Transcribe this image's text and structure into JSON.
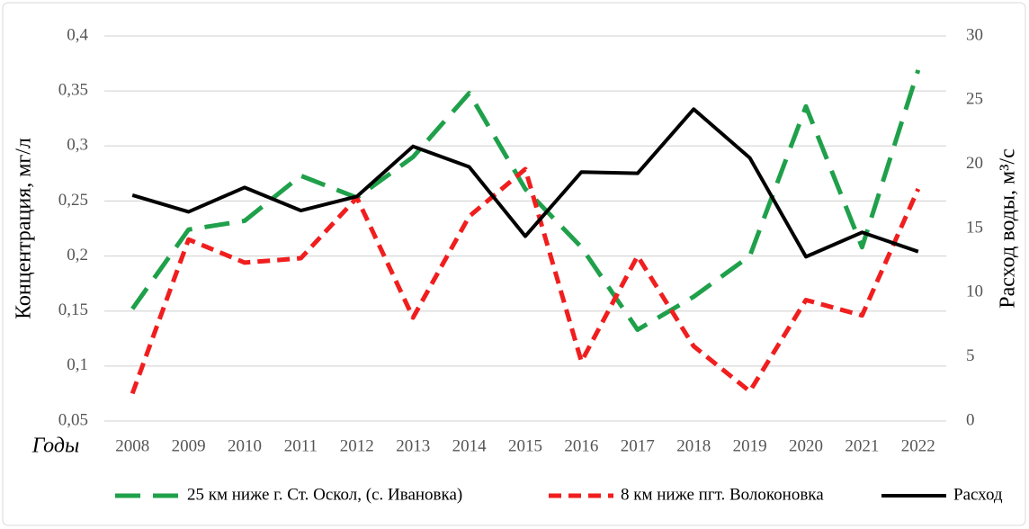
{
  "chart_data": {
    "type": "line",
    "x_label": "Годы",
    "y_label": "Концентрация, мг/л",
    "y2_label": "Расход воды, м³/с",
    "categories": [
      "2008",
      "2009",
      "2010",
      "2011",
      "2012",
      "2013",
      "2014",
      "2015",
      "2016",
      "2017",
      "2018",
      "2019",
      "2020",
      "2021",
      "2022"
    ],
    "series": [
      {
        "name": "25 км ниже г. Ст. Оскол, (с. Ивановка)",
        "color": "#1fa04a",
        "line_style": "long-dash",
        "values": [
          0.152,
          0.224,
          0.232,
          0.273,
          0.253,
          0.29,
          0.348,
          0.261,
          0.208,
          0.133,
          0.163,
          0.2,
          0.336,
          0.208,
          0.369
        ]
      },
      {
        "name": "8 км ниже пгт. Волоконовка",
        "color": "#f01e1e",
        "line_style": "dash",
        "values": [
          0.075,
          0.215,
          0.194,
          0.198,
          0.253,
          0.144,
          0.236,
          0.279,
          0.104,
          0.2,
          0.118,
          0.077,
          0.16,
          0.146,
          0.261
        ]
      },
      {
        "name": "Расход",
        "color": "#000000",
        "line_style": "solid",
        "axis": "y2",
        "values": [
          17.6,
          16.3,
          18.2,
          16.4,
          17.5,
          21.4,
          19.8,
          14.4,
          19.4,
          19.3,
          24.3,
          20.5,
          12.8,
          14.7,
          13.2
        ]
      }
    ],
    "ylim": [
      0.05,
      0.4
    ],
    "yticks": [
      {
        "value": 0.05,
        "label": "0,05"
      },
      {
        "value": 0.1,
        "label": "0,1"
      },
      {
        "value": 0.15,
        "label": "0,15"
      },
      {
        "value": 0.2,
        "label": "0,2"
      },
      {
        "value": 0.25,
        "label": "0,25"
      },
      {
        "value": 0.3,
        "label": "0,3"
      },
      {
        "value": 0.35,
        "label": "0,35"
      },
      {
        "value": 0.4,
        "label": "0,4"
      }
    ],
    "y2lim": [
      0,
      30
    ],
    "y2ticks": [
      0,
      5,
      10,
      15,
      20,
      25,
      30
    ],
    "grid": true,
    "legend": "bottom"
  }
}
